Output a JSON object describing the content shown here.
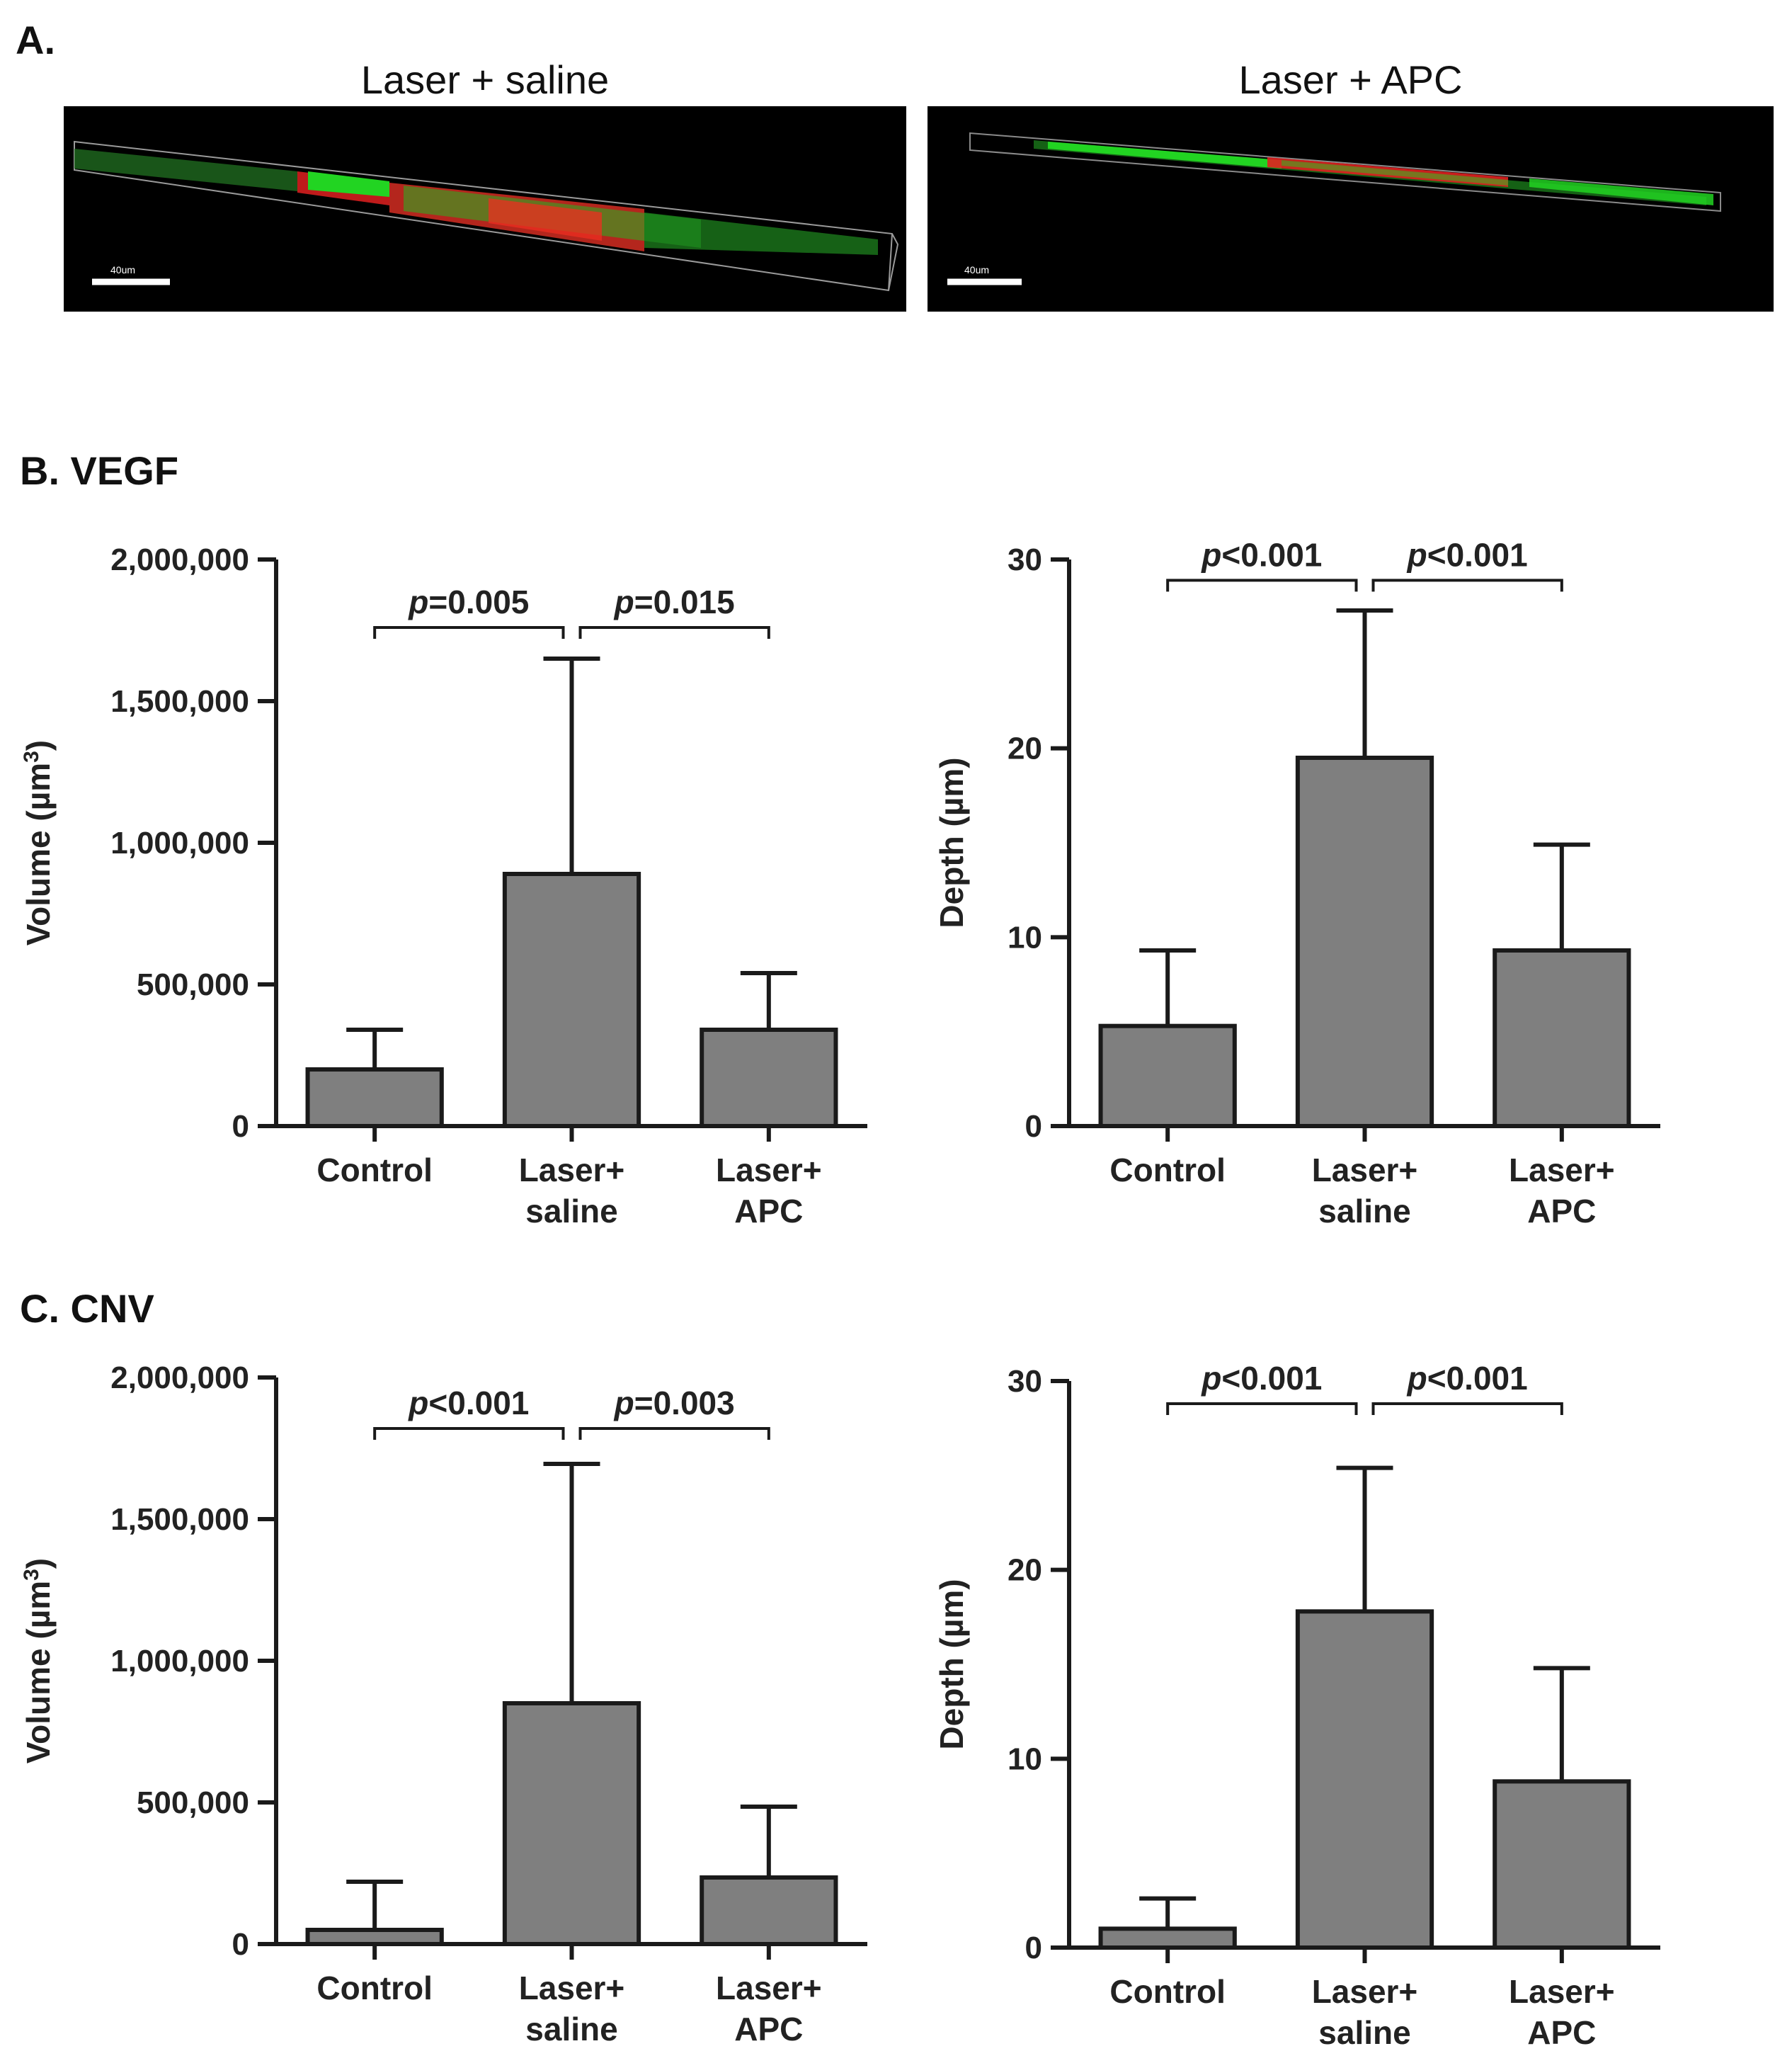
{
  "panels": {
    "a_label": "A.",
    "b_label": "B. VEGF",
    "c_label": "C. CNV"
  },
  "images": [
    {
      "title": "Laser + saline",
      "scale_label": "40um"
    },
    {
      "title": "Laser + APC",
      "scale_label": "40um"
    }
  ],
  "colors": {
    "bar_fill": "#7f7f7f",
    "stroke": "#1a1a1a",
    "stain_green": "#22d422",
    "stain_red": "#e02020"
  },
  "chart_data": [
    {
      "type": "bar",
      "panel": "B. VEGF",
      "ylabel_main": "Volume (µm",
      "ylabel_sup": "3",
      "ylabel_end": ")",
      "ylim": [
        0,
        2000000
      ],
      "yticks": [
        0,
        500000,
        1000000,
        1500000,
        2000000
      ],
      "ytick_labels": [
        "0",
        "500,000",
        "1,000,000",
        "1,500,000",
        "2,000,000"
      ],
      "categories": [
        [
          "Control"
        ],
        [
          "Laser+",
          "saline"
        ],
        [
          "Laser+",
          "APC"
        ]
      ],
      "values": [
        200000,
        890000,
        340000
      ],
      "errors": [
        140000,
        760000,
        200000
      ],
      "brackets": [
        {
          "from": 0,
          "to": 1,
          "level": 1760000,
          "p": "p",
          "rest": "=0.005"
        },
        {
          "from": 1,
          "to": 2,
          "level": 1760000,
          "p": "p",
          "rest": "=0.015"
        }
      ]
    },
    {
      "type": "bar",
      "panel": "B. VEGF",
      "ylabel_main": "Depth (µm)",
      "ylabel_sup": "",
      "ylabel_end": "",
      "ylim": [
        0,
        30
      ],
      "yticks": [
        0,
        10,
        20,
        30
      ],
      "ytick_labels": [
        "0",
        "10",
        "20",
        "30"
      ],
      "categories": [
        [
          "Control"
        ],
        [
          "Laser+",
          "saline"
        ],
        [
          "Laser+",
          "APC"
        ]
      ],
      "values": [
        5.3,
        19.5,
        9.3
      ],
      "errors": [
        4.0,
        7.8,
        5.6
      ],
      "brackets": [
        {
          "from": 0,
          "to": 1,
          "level": 28.9,
          "p": "p",
          "rest": "<0.001"
        },
        {
          "from": 1,
          "to": 2,
          "level": 28.9,
          "p": "p",
          "rest": "<0.001"
        }
      ]
    },
    {
      "type": "bar",
      "panel": "C. CNV",
      "ylabel_main": "Volume (µm",
      "ylabel_sup": "3",
      "ylabel_end": ")",
      "ylim": [
        0,
        2000000
      ],
      "yticks": [
        0,
        500000,
        1000000,
        1500000,
        2000000
      ],
      "ytick_labels": [
        "0",
        "500,000",
        "1,000,000",
        "1,500,000",
        "2,000,000"
      ],
      "categories": [
        [
          "Control"
        ],
        [
          "Laser+",
          "saline"
        ],
        [
          "Laser+",
          "APC"
        ]
      ],
      "values": [
        50000,
        850000,
        235000
      ],
      "errors": [
        170000,
        845000,
        250000
      ],
      "brackets": [
        {
          "from": 0,
          "to": 1,
          "level": 1820000,
          "p": "p",
          "rest": "<0.001"
        },
        {
          "from": 1,
          "to": 2,
          "level": 1820000,
          "p": "p",
          "rest": "=0.003"
        }
      ]
    },
    {
      "type": "bar",
      "panel": "C. CNV",
      "ylabel_main": "Depth (µm)",
      "ylabel_sup": "",
      "ylabel_end": "",
      "ylim": [
        0,
        30
      ],
      "yticks": [
        0,
        10,
        20,
        30
      ],
      "ytick_labels": [
        "0",
        "10",
        "20",
        "30"
      ],
      "categories": [
        [
          "Control"
        ],
        [
          "Laser+",
          "saline"
        ],
        [
          "Laser+",
          "APC"
        ]
      ],
      "values": [
        1.0,
        17.8,
        8.8
      ],
      "errors": [
        1.6,
        7.6,
        6.0
      ],
      "brackets": [
        {
          "from": 0,
          "to": 1,
          "level": 28.8,
          "p": "p",
          "rest": "<0.001"
        },
        {
          "from": 1,
          "to": 2,
          "level": 28.8,
          "p": "p",
          "rest": "<0.001"
        }
      ]
    }
  ]
}
